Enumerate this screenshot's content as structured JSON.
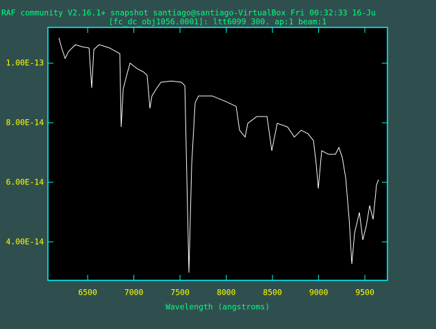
{
  "chart_data": {
    "type": "line",
    "title": "RAF community V2.16.1+ snapshot santiago@santiago-VirtualBox Fri 00:32:33 16-Ju",
    "subtitle": "[fc_dc_obj1056.0001]: ltt6099 300. ap:1 beam:1",
    "x_label": "Wavelength (angstroms)",
    "color": "#ffffff",
    "x": [
      6189,
      6219,
      6256,
      6293,
      6367,
      6441,
      6515,
      6544,
      6567,
      6626,
      6737,
      6848,
      6863,
      6885,
      6922,
      6959,
      7033,
      7107,
      7144,
      7174,
      7196,
      7241,
      7293,
      7404,
      7515,
      7552,
      7596,
      7626,
      7663,
      7700,
      7848,
      7996,
      8107,
      8144,
      8204,
      8233,
      8330,
      8441,
      8493,
      8552,
      8663,
      8737,
      8811,
      8885,
      8944,
      8974,
      8996,
      9033,
      9107,
      9181,
      9219,
      9256,
      9293,
      9330,
      9359,
      9389,
      9441,
      9478,
      9515,
      9552,
      9589,
      9626,
      9648
    ],
    "values": [
      1.085e-13,
      1.051e-13,
      1.016e-13,
      1.039e-13,
      1.062e-13,
      1.055e-13,
      1.051e-13,
      9.17e-14,
      1.046e-13,
      1.062e-13,
      1.051e-13,
      1.032e-13,
      7.86e-14,
      9.13e-14,
      9.59e-14,
      1e-13,
      9.82e-14,
      9.7e-14,
      9.59e-14,
      8.48e-14,
      8.9e-14,
      9.13e-14,
      9.36e-14,
      9.4e-14,
      9.36e-14,
      9.24e-14,
      2.97e-14,
      6.6e-14,
      8.67e-14,
      8.9e-14,
      8.9e-14,
      8.71e-14,
      8.55e-14,
      7.75e-14,
      7.52e-14,
      7.98e-14,
      8.21e-14,
      8.21e-14,
      7.06e-14,
      7.98e-14,
      7.86e-14,
      7.52e-14,
      7.75e-14,
      7.63e-14,
      7.4e-14,
      6.6e-14,
      5.79e-14,
      7.06e-14,
      6.94e-14,
      6.94e-14,
      7.17e-14,
      6.83e-14,
      6.14e-14,
      4.76e-14,
      3.26e-14,
      4.3e-14,
      4.99e-14,
      4.07e-14,
      4.53e-14,
      5.22e-14,
      4.76e-14,
      5.91e-14,
      6.09e-14
    ],
    "xlim": [
      6070,
      9744
    ],
    "ylim": [
      2.71e-14,
      1.12e-13
    ],
    "xticks": [
      6500,
      7000,
      7500,
      8000,
      8500,
      9000,
      9500
    ],
    "yticks": [
      {
        "value": 1e-13,
        "label": "1.00E-13"
      },
      {
        "value": 8e-14,
        "label": "8.00E-14"
      },
      {
        "value": 6e-14,
        "label": "6.00E-14"
      },
      {
        "value": 4e-14,
        "label": "4.00E-14"
      }
    ]
  }
}
